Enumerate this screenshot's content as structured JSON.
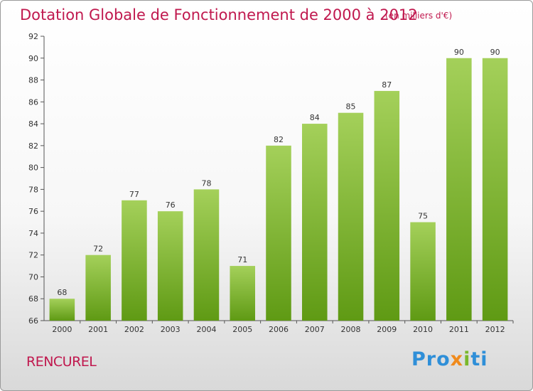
{
  "header": {
    "title": "Dotation Globale de Fonctionnement de 2000 à 2012",
    "subtitle": "(en milliers d'€)"
  },
  "footer": {
    "commune": "RENCUREL",
    "logo_text": "Proxiti",
    "logo_parts": [
      "Pro",
      "x",
      "i",
      "ti"
    ]
  },
  "colors": {
    "title": "#c0184e",
    "bar_top": "#a4d05a",
    "bar_bottom": "#5f9a14",
    "axis": "#555555"
  },
  "chart_data": {
    "type": "bar",
    "title": "Dotation Globale de Fonctionnement de 2000 à 2012",
    "subtitle": "(en milliers d'€)",
    "xlabel": "",
    "ylabel": "",
    "categories": [
      "2000",
      "2001",
      "2002",
      "2003",
      "2004",
      "2005",
      "2006",
      "2007",
      "2008",
      "2009",
      "2010",
      "2011",
      "2012"
    ],
    "values": [
      68,
      72,
      77,
      76,
      78,
      71,
      82,
      84,
      85,
      87,
      75,
      90,
      90
    ],
    "ylim": [
      66,
      92
    ],
    "yticks": [
      66,
      68,
      70,
      72,
      74,
      76,
      78,
      80,
      82,
      84,
      86,
      88,
      90,
      92
    ],
    "grid": false,
    "legend": "none"
  }
}
